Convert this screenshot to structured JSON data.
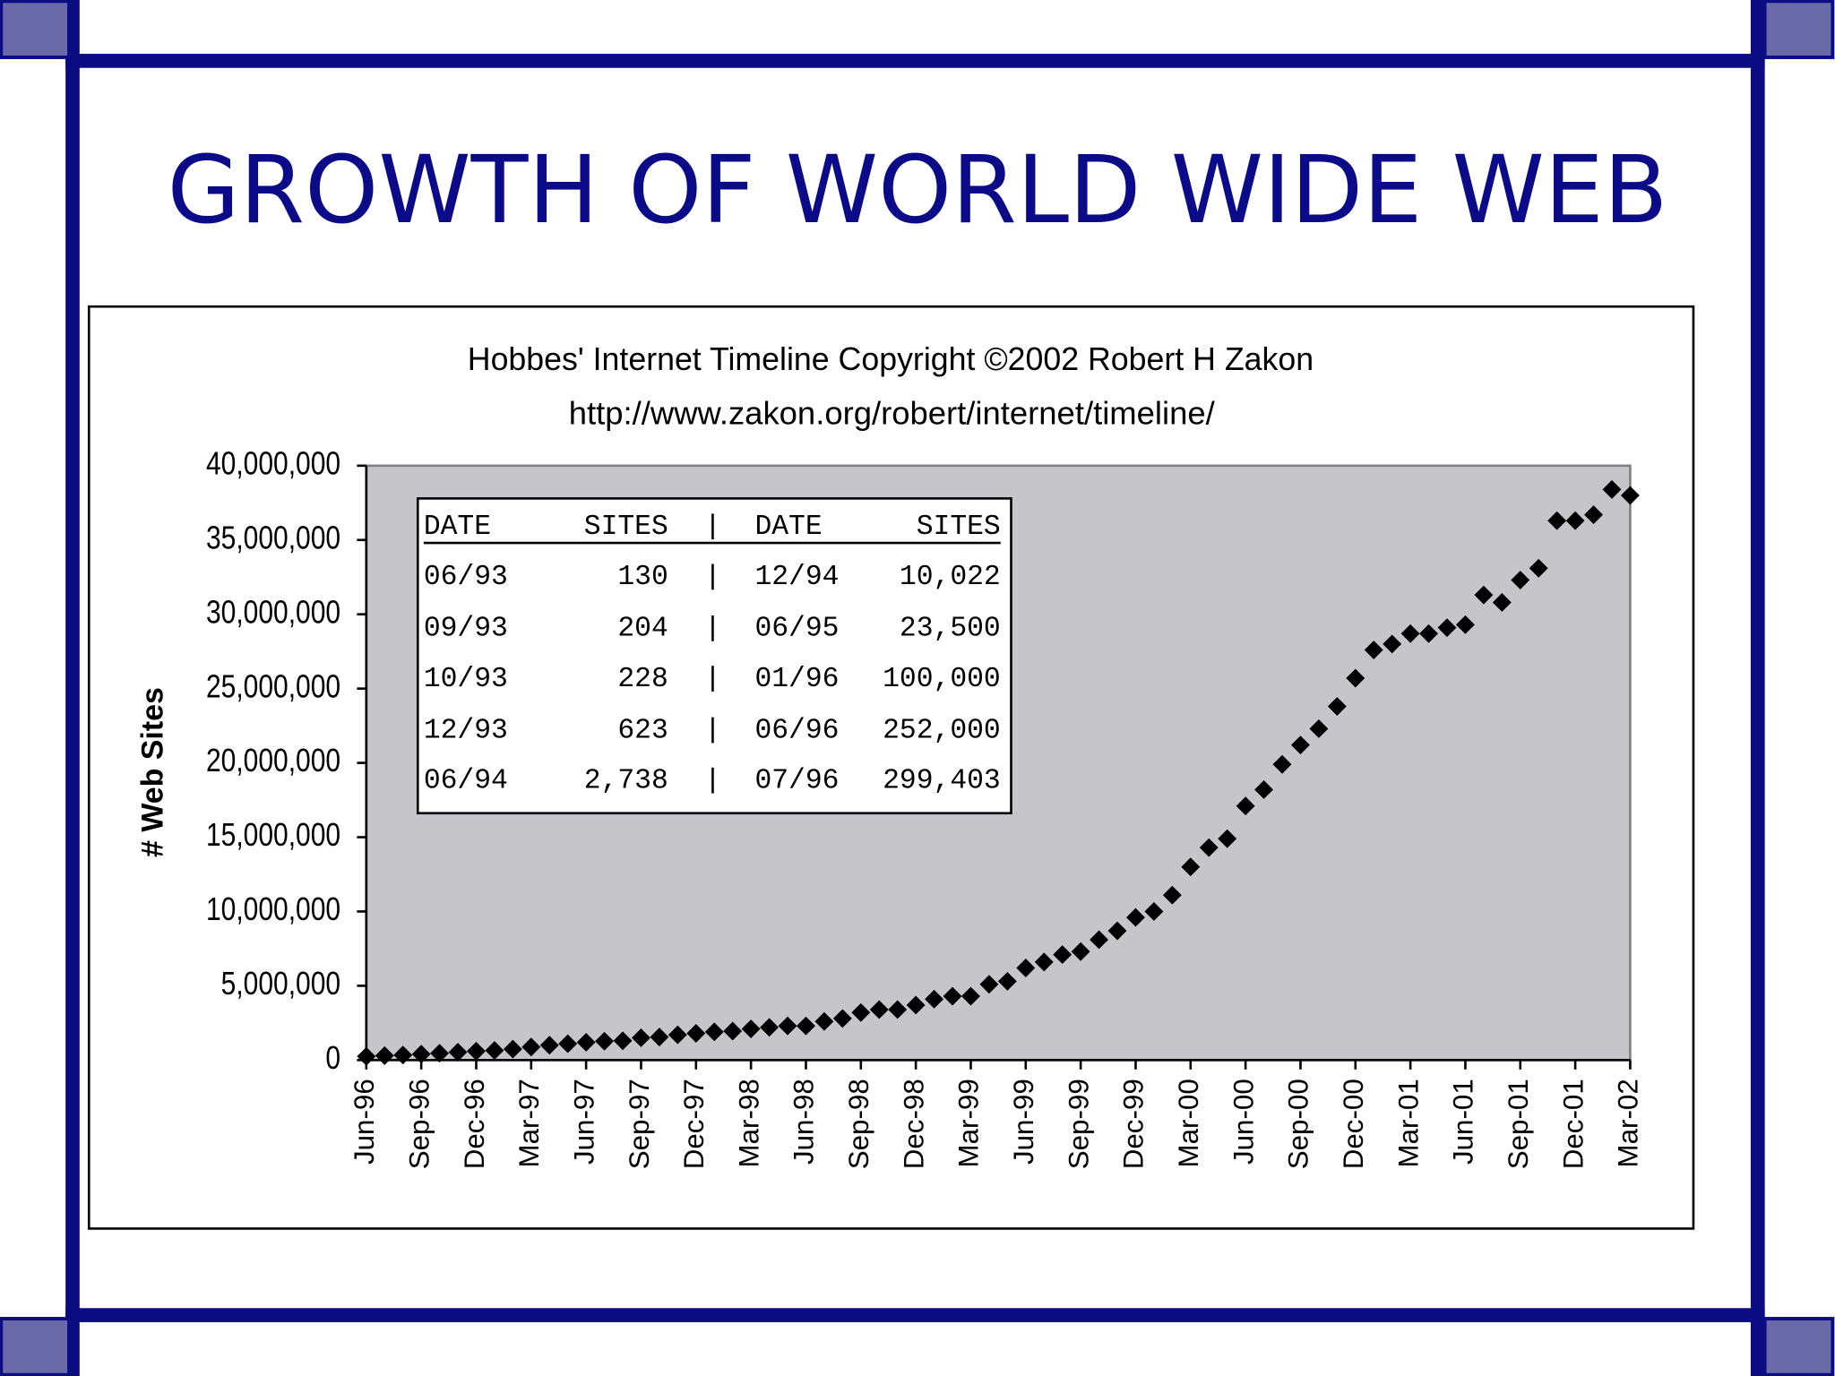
{
  "slide_title": "GROWTH OF WORLD WIDE WEB",
  "chart_data": {
    "type": "scatter",
    "title": "Hobbes' Internet Timeline Copyright ©2002 Robert H Zakon",
    "subtitle": "http://www.zakon.org/robert/internet/timeline/",
    "ylabel": "# Web Sites",
    "categories": [
      "Jun-96",
      null,
      null,
      "Sep-96",
      null,
      null,
      "Dec-96",
      null,
      null,
      "Mar-97",
      null,
      null,
      "Jun-97",
      null,
      null,
      "Sep-97",
      null,
      null,
      "Dec-97",
      null,
      null,
      "Mar-98",
      null,
      null,
      "Jun-98",
      null,
      null,
      "Sep-98",
      null,
      null,
      "Dec-98",
      null,
      null,
      "Mar-99",
      null,
      null,
      "Jun-99",
      null,
      null,
      "Sep-99",
      null,
      null,
      "Dec-99",
      null,
      null,
      "Mar-00",
      null,
      null,
      "Jun-00",
      null,
      null,
      "Sep-00",
      null,
      null,
      "Dec-00",
      null,
      null,
      "Mar-01",
      null,
      null,
      "Jun-01",
      null,
      null,
      "Sep-01",
      null,
      null,
      "Dec-01",
      null,
      null,
      "Mar-02"
    ],
    "values": [
      250000,
      300000,
      340000,
      400000,
      460000,
      530000,
      600000,
      650000,
      740000,
      880000,
      1000000,
      1100000,
      1200000,
      1270000,
      1300000,
      1500000,
      1550000,
      1700000,
      1800000,
      1900000,
      1950000,
      2100000,
      2200000,
      2300000,
      2300000,
      2600000,
      2800000,
      3200000,
      3400000,
      3400000,
      3700000,
      4100000,
      4300000,
      4300000,
      5100000,
      5300000,
      6200000,
      6600000,
      7100000,
      7300000,
      8100000,
      8700000,
      9600000,
      10000000,
      11100000,
      13000000,
      14300000,
      14900000,
      17100000,
      18200000,
      19900000,
      21200000,
      22300000,
      23800000,
      25700000,
      27600000,
      28000000,
      28700000,
      28700000,
      29100000,
      29300000,
      31300000,
      30800000,
      32300000,
      33100000,
      36300000,
      36300000,
      36700000,
      38400000,
      38000000
    ],
    "color": "#000000",
    "plot_background": "#c6c5ca",
    "ylim": [
      0,
      40000000
    ],
    "yticks": [
      0,
      {
        "value": 5000000,
        "label": "5,000,000"
      },
      {
        "value": 10000000,
        "label": "10,000,000"
      },
      {
        "value": 15000000,
        "label": "15,000,000"
      },
      {
        "value": 20000000,
        "label": "20,000,000"
      },
      {
        "value": 25000000,
        "label": "25,000,000"
      },
      {
        "value": 30000000,
        "label": "30,000,000"
      },
      {
        "value": 35000000,
        "label": "35,000,000"
      },
      {
        "value": 40000000,
        "label": "40,000,000"
      }
    ],
    "grid": false,
    "table": {
      "header": [
        "DATE",
        "SITES",
        "DATE",
        "SITES"
      ],
      "rows": [
        [
          "06/93",
          "130",
          "12/94",
          "10,022"
        ],
        [
          "09/93",
          "204",
          "06/95",
          "23,500"
        ],
        [
          "10/93",
          "228",
          "01/96",
          "100,000"
        ],
        [
          "12/93",
          "623",
          "06/96",
          "252,000"
        ],
        [
          "06/94",
          "2,738",
          "07/96",
          "299,403"
        ]
      ]
    }
  }
}
